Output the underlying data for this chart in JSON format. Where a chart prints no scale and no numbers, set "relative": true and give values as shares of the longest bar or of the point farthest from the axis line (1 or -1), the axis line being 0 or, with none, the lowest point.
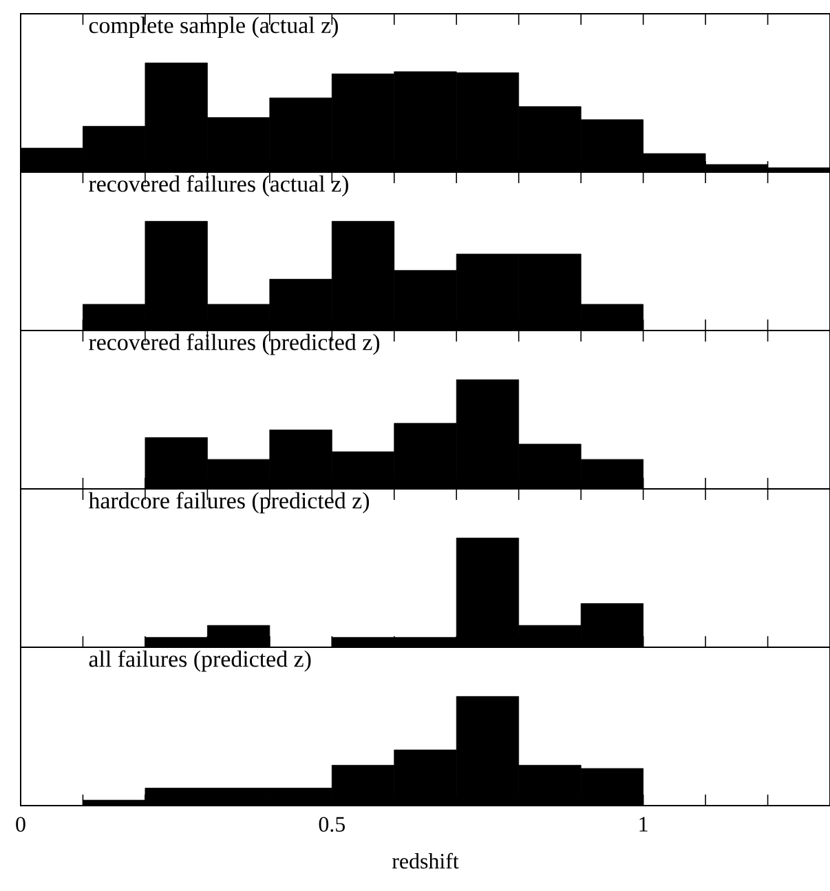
{
  "chart_data": [
    {
      "type": "bar",
      "title": "complete sample (actual z)",
      "relative": true,
      "color": "#000000",
      "tick_labels": false,
      "x": [
        0.05,
        0.15,
        0.25,
        0.35,
        0.45,
        0.55,
        0.65,
        0.75,
        0.85,
        0.95,
        1.05,
        1.15,
        1.25
      ],
      "values": [
        0.22,
        0.42,
        1,
        0.5,
        0.68,
        0.9,
        0.92,
        0.91,
        0.6,
        0.48,
        0.17,
        0.07,
        0.04
      ],
      "xlim": [
        0,
        1.3
      ],
      "xticks": [
        {
          "value": 0,
          "label": null
        },
        {
          "value": 0.1,
          "label": null
        },
        {
          "value": 0.2,
          "label": null
        },
        {
          "value": 0.3,
          "label": null
        },
        {
          "value": 0.4,
          "label": null
        },
        {
          "value": 0.5,
          "label": null
        },
        {
          "value": 0.6,
          "label": null
        },
        {
          "value": 0.7,
          "label": null
        },
        {
          "value": 0.8,
          "label": null
        },
        {
          "value": 0.9,
          "label": null
        },
        {
          "value": 1,
          "label": null
        },
        {
          "value": 1.1,
          "label": null
        },
        {
          "value": 1.2,
          "label": null
        }
      ]
    },
    {
      "type": "bar",
      "title": "recovered failures (actual z)",
      "relative": true,
      "color": "#000000",
      "tick_labels": false,
      "x": [
        0.05,
        0.15,
        0.25,
        0.35,
        0.45,
        0.55,
        0.65,
        0.75,
        0.85,
        0.95,
        1.05,
        1.15,
        1.25
      ],
      "values": [
        0,
        0.24,
        1,
        0.24,
        0.47,
        1,
        0.55,
        0.7,
        0.7,
        0.24,
        0,
        0,
        0
      ],
      "xlim": [
        0,
        1.3
      ],
      "xticks": [
        {
          "value": 0,
          "label": null
        },
        {
          "value": 0.1,
          "label": null
        },
        {
          "value": 0.2,
          "label": null
        },
        {
          "value": 0.3,
          "label": null
        },
        {
          "value": 0.4,
          "label": null
        },
        {
          "value": 0.5,
          "label": null
        },
        {
          "value": 0.6,
          "label": null
        },
        {
          "value": 0.7,
          "label": null
        },
        {
          "value": 0.8,
          "label": null
        },
        {
          "value": 0.9,
          "label": null
        },
        {
          "value": 1,
          "label": null
        },
        {
          "value": 1.1,
          "label": null
        },
        {
          "value": 1.2,
          "label": null
        }
      ]
    },
    {
      "type": "bar",
      "title": "recovered failures (predicted z)",
      "relative": true,
      "color": "#000000",
      "tick_labels": false,
      "x": [
        0.05,
        0.15,
        0.25,
        0.35,
        0.45,
        0.55,
        0.65,
        0.75,
        0.85,
        0.95,
        1.05,
        1.15,
        1.25
      ],
      "values": [
        0,
        0,
        0.47,
        0.27,
        0.54,
        0.34,
        0.6,
        1,
        0.41,
        0.27,
        0,
        0,
        0
      ],
      "xlim": [
        0,
        1.3
      ],
      "xticks": [
        {
          "value": 0,
          "label": null
        },
        {
          "value": 0.1,
          "label": null
        },
        {
          "value": 0.2,
          "label": null
        },
        {
          "value": 0.3,
          "label": null
        },
        {
          "value": 0.4,
          "label": null
        },
        {
          "value": 0.5,
          "label": null
        },
        {
          "value": 0.6,
          "label": null
        },
        {
          "value": 0.7,
          "label": null
        },
        {
          "value": 0.8,
          "label": null
        },
        {
          "value": 0.9,
          "label": null
        },
        {
          "value": 1,
          "label": null
        },
        {
          "value": 1.1,
          "label": null
        },
        {
          "value": 1.2,
          "label": null
        }
      ]
    },
    {
      "type": "bar",
      "title": "hardcore failures (predicted z)",
      "relative": true,
      "color": "#000000",
      "tick_labels": false,
      "x": [
        0.05,
        0.15,
        0.25,
        0.35,
        0.45,
        0.55,
        0.65,
        0.75,
        0.85,
        0.95,
        1.05,
        1.15,
        1.25
      ],
      "values": [
        0,
        0,
        0.09,
        0.2,
        0,
        0.09,
        0.09,
        1,
        0.2,
        0.4,
        0,
        0,
        0
      ],
      "xlim": [
        0,
        1.3
      ],
      "xticks": [
        {
          "value": 0,
          "label": null
        },
        {
          "value": 0.1,
          "label": null
        },
        {
          "value": 0.2,
          "label": null
        },
        {
          "value": 0.3,
          "label": null
        },
        {
          "value": 0.4,
          "label": null
        },
        {
          "value": 0.5,
          "label": null
        },
        {
          "value": 0.6,
          "label": null
        },
        {
          "value": 0.7,
          "label": null
        },
        {
          "value": 0.8,
          "label": null
        },
        {
          "value": 0.9,
          "label": null
        },
        {
          "value": 1,
          "label": null
        },
        {
          "value": 1.1,
          "label": null
        },
        {
          "value": 1.2,
          "label": null
        }
      ]
    },
    {
      "type": "bar",
      "title": "all failures (predicted z)",
      "relative": true,
      "color": "#000000",
      "tick_labels": "x",
      "xlabel": "redshift",
      "x": [
        0.05,
        0.15,
        0.25,
        0.35,
        0.45,
        0.55,
        0.65,
        0.75,
        0.85,
        0.95,
        1.05,
        1.15,
        1.25
      ],
      "values": [
        0,
        0.05,
        0.16,
        0.16,
        0.16,
        0.37,
        0.51,
        1,
        0.37,
        0.34,
        0,
        0,
        0
      ],
      "xlim": [
        0,
        1.3
      ],
      "xticks": [
        {
          "value": 0,
          "label": "0"
        },
        {
          "value": 0.1,
          "label": null
        },
        {
          "value": 0.2,
          "label": null
        },
        {
          "value": 0.3,
          "label": null
        },
        {
          "value": 0.4,
          "label": null
        },
        {
          "value": 0.5,
          "label": "0.5"
        },
        {
          "value": 0.6,
          "label": null
        },
        {
          "value": 0.7,
          "label": null
        },
        {
          "value": 0.8,
          "label": null
        },
        {
          "value": 0.9,
          "label": null
        },
        {
          "value": 1,
          "label": "1"
        },
        {
          "value": 1.1,
          "label": null
        },
        {
          "value": 1.2,
          "label": null
        }
      ]
    }
  ]
}
